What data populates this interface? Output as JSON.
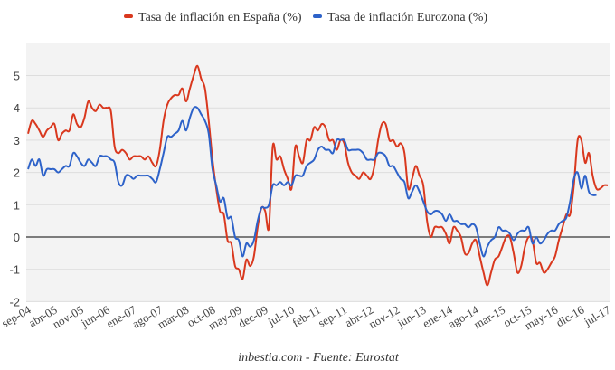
{
  "chart_data": {
    "type": "line",
    "title": "",
    "xlabel": "",
    "ylabel": "",
    "ylim": [
      -2,
      6
    ],
    "yticks": [
      -2,
      -1,
      0,
      1,
      2,
      3,
      4,
      5
    ],
    "grid": true,
    "legend_position": "top-center",
    "source": "inbestia.com - Fuente: Eurostat",
    "x_start": "sep-04",
    "x_end": "jul-17",
    "x_tick_labels": [
      "sep-04",
      "abr-05",
      "nov-05",
      "jun-06",
      "ene-07",
      "ago-07",
      "mar-08",
      "oct-08",
      "may-09",
      "dec-09",
      "jul-10",
      "feb-11",
      "sep-11",
      "abr-12",
      "nov-12",
      "jun-13",
      "ene-14",
      "ago-14",
      "mar-15",
      "oct-15",
      "may-16",
      "dic-16",
      "jul-17"
    ],
    "series": [
      {
        "name": "Tasa de inflación en España (%)",
        "color": "#d9381e",
        "points": [
          [
            0,
            3.2
          ],
          [
            1,
            3.6
          ],
          [
            2,
            3.5
          ],
          [
            3,
            3.3
          ],
          [
            4,
            3.1
          ],
          [
            5,
            3.3
          ],
          [
            6,
            3.4
          ],
          [
            7,
            3.5
          ],
          [
            8,
            3.0
          ],
          [
            9,
            3.2
          ],
          [
            10,
            3.3
          ],
          [
            11,
            3.3
          ],
          [
            12,
            3.8
          ],
          [
            13,
            3.5
          ],
          [
            14,
            3.4
          ],
          [
            15,
            3.7
          ],
          [
            16,
            4.2
          ],
          [
            17,
            4.0
          ],
          [
            18,
            3.9
          ],
          [
            19,
            4.1
          ],
          [
            20,
            4.0
          ],
          [
            21,
            4.0
          ],
          [
            22,
            3.9
          ],
          [
            23,
            2.8
          ],
          [
            24,
            2.6
          ],
          [
            25,
            2.7
          ],
          [
            26,
            2.6
          ],
          [
            27,
            2.4
          ],
          [
            28,
            2.5
          ],
          [
            29,
            2.5
          ],
          [
            30,
            2.5
          ],
          [
            31,
            2.4
          ],
          [
            32,
            2.5
          ],
          [
            33,
            2.3
          ],
          [
            34,
            2.2
          ],
          [
            35,
            2.7
          ],
          [
            36,
            3.6
          ],
          [
            37,
            4.1
          ],
          [
            38,
            4.3
          ],
          [
            39,
            4.4
          ],
          [
            40,
            4.4
          ],
          [
            41,
            4.6
          ],
          [
            42,
            4.2
          ],
          [
            43,
            4.6
          ],
          [
            44,
            5.0
          ],
          [
            45,
            5.3
          ],
          [
            46,
            4.9
          ],
          [
            47,
            4.6
          ],
          [
            48,
            3.6
          ],
          [
            49,
            2.4
          ],
          [
            50,
            1.5
          ],
          [
            51,
            0.8
          ],
          [
            52,
            0.7
          ],
          [
            53,
            -0.1
          ],
          [
            54,
            -0.2
          ],
          [
            55,
            -0.9
          ],
          [
            56,
            -1.0
          ],
          [
            57,
            -1.3
          ],
          [
            58,
            -0.7
          ],
          [
            59,
            -0.9
          ],
          [
            60,
            -0.6
          ],
          [
            61,
            0.3
          ],
          [
            62,
            0.9
          ],
          [
            63,
            0.8
          ],
          [
            64,
            0.3
          ],
          [
            65,
            2.8
          ],
          [
            66,
            2.4
          ],
          [
            67,
            2.5
          ],
          [
            68,
            2.1
          ],
          [
            69,
            1.8
          ],
          [
            70,
            1.5
          ],
          [
            71,
            2.8
          ],
          [
            72,
            2.5
          ],
          [
            73,
            2.3
          ],
          [
            74,
            3.0
          ],
          [
            75,
            3.0
          ],
          [
            76,
            3.4
          ],
          [
            77,
            3.3
          ],
          [
            78,
            3.5
          ],
          [
            79,
            3.4
          ],
          [
            80,
            3.0
          ],
          [
            81,
            3.0
          ],
          [
            82,
            2.7
          ],
          [
            83,
            3.0
          ],
          [
            84,
            2.9
          ],
          [
            85,
            2.3
          ],
          [
            86,
            2.0
          ],
          [
            87,
            1.9
          ],
          [
            88,
            1.8
          ],
          [
            89,
            2.0
          ],
          [
            90,
            1.9
          ],
          [
            91,
            1.8
          ],
          [
            92,
            2.2
          ],
          [
            93,
            3.0
          ],
          [
            94,
            3.5
          ],
          [
            95,
            3.5
          ],
          [
            96,
            3.0
          ],
          [
            97,
            3.0
          ],
          [
            98,
            2.8
          ],
          [
            99,
            2.9
          ],
          [
            100,
            2.6
          ],
          [
            101,
            1.5
          ],
          [
            102,
            1.8
          ],
          [
            103,
            2.2
          ],
          [
            104,
            1.9
          ],
          [
            105,
            1.6
          ],
          [
            106,
            0.5
          ],
          [
            107,
            0.0
          ],
          [
            108,
            0.3
          ],
          [
            109,
            0.3
          ],
          [
            110,
            0.3
          ],
          [
            111,
            0.1
          ],
          [
            112,
            -0.2
          ],
          [
            113,
            0.3
          ],
          [
            114,
            0.2
          ],
          [
            115,
            -0.0
          ],
          [
            116,
            -0.5
          ],
          [
            117,
            -0.5
          ],
          [
            118,
            -0.2
          ],
          [
            119,
            -0.1
          ],
          [
            120,
            -0.6
          ],
          [
            121,
            -1.1
          ],
          [
            122,
            -1.5
          ],
          [
            123,
            -1.1
          ],
          [
            124,
            -0.7
          ],
          [
            125,
            -0.6
          ],
          [
            126,
            -0.3
          ],
          [
            127,
            0.0
          ],
          [
            128,
            0.0
          ],
          [
            129,
            -0.5
          ],
          [
            130,
            -1.1
          ],
          [
            131,
            -0.9
          ],
          [
            132,
            -0.3
          ],
          [
            133,
            0.0
          ],
          [
            134,
            -0.1
          ],
          [
            135,
            -0.8
          ],
          [
            136,
            -0.8
          ],
          [
            137,
            -1.1
          ],
          [
            138,
            -1.0
          ],
          [
            139,
            -0.8
          ],
          [
            140,
            -0.6
          ],
          [
            141,
            -0.1
          ],
          [
            142,
            0.3
          ],
          [
            143,
            0.7
          ],
          [
            144,
            0.7
          ],
          [
            145,
            1.6
          ],
          [
            146,
            3.0
          ],
          [
            147,
            3.0
          ],
          [
            148,
            2.3
          ],
          [
            149,
            2.6
          ],
          [
            150,
            1.9
          ],
          [
            151,
            1.5
          ],
          [
            152,
            1.5
          ],
          [
            153,
            1.6
          ],
          [
            154,
            1.6
          ]
        ]
      },
      {
        "name": "Tasa de inflación Eurozona (%)",
        "color": "#2d62c9",
        "points": [
          [
            0,
            2.1
          ],
          [
            1,
            2.4
          ],
          [
            2,
            2.2
          ],
          [
            3,
            2.4
          ],
          [
            4,
            1.9
          ],
          [
            5,
            2.1
          ],
          [
            6,
            2.1
          ],
          [
            7,
            2.1
          ],
          [
            8,
            2.0
          ],
          [
            9,
            2.1
          ],
          [
            10,
            2.2
          ],
          [
            11,
            2.2
          ],
          [
            12,
            2.6
          ],
          [
            13,
            2.5
          ],
          [
            14,
            2.3
          ],
          [
            15,
            2.2
          ],
          [
            16,
            2.4
          ],
          [
            17,
            2.3
          ],
          [
            18,
            2.2
          ],
          [
            19,
            2.5
          ],
          [
            20,
            2.5
          ],
          [
            21,
            2.5
          ],
          [
            22,
            2.4
          ],
          [
            23,
            2.3
          ],
          [
            24,
            1.7
          ],
          [
            25,
            1.6
          ],
          [
            26,
            1.9
          ],
          [
            27,
            1.9
          ],
          [
            28,
            1.8
          ],
          [
            29,
            1.9
          ],
          [
            30,
            1.9
          ],
          [
            31,
            1.9
          ],
          [
            32,
            1.9
          ],
          [
            33,
            1.8
          ],
          [
            34,
            1.7
          ],
          [
            35,
            2.1
          ],
          [
            36,
            2.6
          ],
          [
            37,
            3.1
          ],
          [
            38,
            3.1
          ],
          [
            39,
            3.2
          ],
          [
            40,
            3.3
          ],
          [
            41,
            3.6
          ],
          [
            42,
            3.3
          ],
          [
            43,
            3.7
          ],
          [
            44,
            4.0
          ],
          [
            45,
            4.0
          ],
          [
            46,
            3.8
          ],
          [
            47,
            3.6
          ],
          [
            48,
            3.2
          ],
          [
            49,
            2.1
          ],
          [
            50,
            1.6
          ],
          [
            51,
            1.1
          ],
          [
            52,
            1.2
          ],
          [
            53,
            0.6
          ],
          [
            54,
            0.6
          ],
          [
            55,
            0.0
          ],
          [
            56,
            -0.1
          ],
          [
            57,
            -0.6
          ],
          [
            58,
            -0.2
          ],
          [
            59,
            -0.3
          ],
          [
            60,
            -0.1
          ],
          [
            61,
            0.5
          ],
          [
            62,
            0.9
          ],
          [
            63,
            0.9
          ],
          [
            64,
            1.0
          ],
          [
            65,
            1.6
          ],
          [
            66,
            1.6
          ],
          [
            67,
            1.7
          ],
          [
            68,
            1.6
          ],
          [
            69,
            1.7
          ],
          [
            70,
            1.6
          ],
          [
            71,
            1.9
          ],
          [
            72,
            1.9
          ],
          [
            73,
            1.9
          ],
          [
            74,
            2.2
          ],
          [
            75,
            2.3
          ],
          [
            76,
            2.4
          ],
          [
            77,
            2.7
          ],
          [
            78,
            2.8
          ],
          [
            79,
            2.7
          ],
          [
            80,
            2.7
          ],
          [
            81,
            2.6
          ],
          [
            82,
            3.0
          ],
          [
            83,
            3.0
          ],
          [
            84,
            3.0
          ],
          [
            85,
            2.7
          ],
          [
            86,
            2.7
          ],
          [
            87,
            2.7
          ],
          [
            88,
            2.7
          ],
          [
            89,
            2.6
          ],
          [
            90,
            2.4
          ],
          [
            91,
            2.4
          ],
          [
            92,
            2.4
          ],
          [
            93,
            2.6
          ],
          [
            94,
            2.6
          ],
          [
            95,
            2.5
          ],
          [
            96,
            2.2
          ],
          [
            97,
            2.2
          ],
          [
            98,
            2.0
          ],
          [
            99,
            1.8
          ],
          [
            100,
            1.7
          ],
          [
            101,
            1.2
          ],
          [
            102,
            1.4
          ],
          [
            103,
            1.6
          ],
          [
            104,
            1.4
          ],
          [
            105,
            1.1
          ],
          [
            106,
            0.8
          ],
          [
            107,
            0.7
          ],
          [
            108,
            0.8
          ],
          [
            109,
            0.8
          ],
          [
            110,
            0.7
          ],
          [
            111,
            0.5
          ],
          [
            112,
            0.7
          ],
          [
            113,
            0.5
          ],
          [
            114,
            0.5
          ],
          [
            115,
            0.4
          ],
          [
            116,
            0.4
          ],
          [
            117,
            0.3
          ],
          [
            118,
            0.4
          ],
          [
            119,
            0.3
          ],
          [
            120,
            -0.2
          ],
          [
            121,
            -0.6
          ],
          [
            122,
            -0.3
          ],
          [
            123,
            -0.1
          ],
          [
            124,
            0.0
          ],
          [
            125,
            0.3
          ],
          [
            126,
            0.2
          ],
          [
            127,
            0.2
          ],
          [
            128,
            0.1
          ],
          [
            129,
            -0.1
          ],
          [
            130,
            0.1
          ],
          [
            131,
            0.2
          ],
          [
            132,
            0.2
          ],
          [
            133,
            0.3
          ],
          [
            134,
            -0.2
          ],
          [
            135,
            0.0
          ],
          [
            136,
            -0.2
          ],
          [
            137,
            -0.1
          ],
          [
            138,
            0.1
          ],
          [
            139,
            0.2
          ],
          [
            140,
            0.2
          ],
          [
            141,
            0.4
          ],
          [
            142,
            0.5
          ],
          [
            143,
            0.6
          ],
          [
            144,
            1.1
          ],
          [
            145,
            1.8
          ],
          [
            146,
            2.0
          ],
          [
            147,
            1.5
          ],
          [
            148,
            1.9
          ],
          [
            149,
            1.4
          ],
          [
            150,
            1.3
          ],
          [
            151,
            1.3
          ]
        ]
      }
    ]
  }
}
